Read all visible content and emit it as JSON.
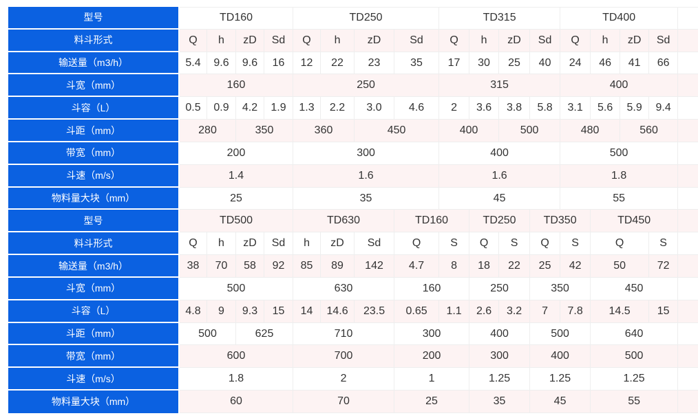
{
  "table": {
    "name": "td-series-spec-table",
    "colors": {
      "header_bg": "#0b61e1",
      "header_text": "#ffffff",
      "cell_text": "#333333",
      "cell_border": "#eeeeee",
      "header_border": "#ffffff",
      "row_bg": "#ffffff",
      "row_alt_bg": "#fdf3f3"
    },
    "rows": [
      {
        "label": "型号",
        "cells": [
          {
            "t": "TD160",
            "s": 4
          },
          {
            "t": "TD250",
            "s": 4
          },
          {
            "t": "TD315",
            "s": 4
          },
          {
            "t": "TD400",
            "s": 4
          }
        ]
      },
      {
        "label": "料斗形式",
        "cells": [
          {
            "t": "Q"
          },
          {
            "t": "h"
          },
          {
            "t": "zD"
          },
          {
            "t": "Sd"
          },
          {
            "t": "Q"
          },
          {
            "t": "h"
          },
          {
            "t": "zD"
          },
          {
            "t": "Sd"
          },
          {
            "t": "Q"
          },
          {
            "t": "h"
          },
          {
            "t": "zD"
          },
          {
            "t": "Sd"
          },
          {
            "t": "Q"
          },
          {
            "t": "h"
          },
          {
            "t": "zD"
          },
          {
            "t": "Sd"
          }
        ]
      },
      {
        "label": "输送量（m3/h）",
        "cells": [
          {
            "t": "5.4"
          },
          {
            "t": "9.6"
          },
          {
            "t": "9.6"
          },
          {
            "t": "16"
          },
          {
            "t": "12"
          },
          {
            "t": "22"
          },
          {
            "t": "23"
          },
          {
            "t": "35"
          },
          {
            "t": "17"
          },
          {
            "t": "30"
          },
          {
            "t": "25"
          },
          {
            "t": "40"
          },
          {
            "t": "24"
          },
          {
            "t": "46"
          },
          {
            "t": "41"
          },
          {
            "t": "66"
          }
        ]
      },
      {
        "label": "斗宽（mm）",
        "cells": [
          {
            "t": "160",
            "s": 4
          },
          {
            "t": "250",
            "s": 4
          },
          {
            "t": "315",
            "s": 4
          },
          {
            "t": "400",
            "s": 4
          }
        ]
      },
      {
        "label": "斗容（L）",
        "cells": [
          {
            "t": "0.5"
          },
          {
            "t": "0.9"
          },
          {
            "t": "4.2"
          },
          {
            "t": "1.9"
          },
          {
            "t": "1.3"
          },
          {
            "t": "2.2"
          },
          {
            "t": "3.0"
          },
          {
            "t": "4.6"
          },
          {
            "t": "2"
          },
          {
            "t": "3.6"
          },
          {
            "t": "3.8"
          },
          {
            "t": "5.8"
          },
          {
            "t": "3.1"
          },
          {
            "t": "5.6"
          },
          {
            "t": "5.9"
          },
          {
            "t": "9.4"
          }
        ]
      },
      {
        "label": "斗距（mm）",
        "cells": [
          {
            "t": "280",
            "s": 2
          },
          {
            "t": "350",
            "s": 2
          },
          {
            "t": "360",
            "s": 2
          },
          {
            "t": "450",
            "s": 2
          },
          {
            "t": "400",
            "s": 2
          },
          {
            "t": "500",
            "s": 2
          },
          {
            "t": "480",
            "s": 2
          },
          {
            "t": "560",
            "s": 2
          }
        ]
      },
      {
        "label": "带宽（mm）",
        "cells": [
          {
            "t": "200",
            "s": 4
          },
          {
            "t": "300",
            "s": 4
          },
          {
            "t": "400",
            "s": 4
          },
          {
            "t": "500",
            "s": 4
          }
        ]
      },
      {
        "label": "斗速（m/s）",
        "cells": [
          {
            "t": "1.4",
            "s": 4
          },
          {
            "t": "1.6",
            "s": 4
          },
          {
            "t": "1.6",
            "s": 4
          },
          {
            "t": "1.8",
            "s": 4
          }
        ]
      },
      {
        "label": "物料量大块（mm）",
        "cells": [
          {
            "t": "25",
            "s": 4
          },
          {
            "t": "35",
            "s": 4
          },
          {
            "t": "45",
            "s": 4
          },
          {
            "t": "55",
            "s": 4
          }
        ]
      },
      {
        "label": "型号",
        "cells": [
          {
            "t": "TD500",
            "s": 4
          },
          {
            "t": "TD630",
            "s": 3
          },
          {
            "t": "TD160",
            "s": 2
          },
          {
            "t": "TD250",
            "s": 2
          },
          {
            "t": "TD350",
            "s": 2
          },
          {
            "t": "TD450",
            "s": 3
          }
        ]
      },
      {
        "label": "料斗形式",
        "cells": [
          {
            "t": "Q"
          },
          {
            "t": "h"
          },
          {
            "t": "zD"
          },
          {
            "t": "Sd"
          },
          {
            "t": "h"
          },
          {
            "t": "zD"
          },
          {
            "t": "Sd"
          },
          {
            "t": "Q"
          },
          {
            "t": "S"
          },
          {
            "t": "Q"
          },
          {
            "t": "S"
          },
          {
            "t": "Q"
          },
          {
            "t": "S"
          },
          {
            "t": "Q",
            "s": 2
          },
          {
            "t": "S"
          }
        ]
      },
      {
        "label": "输送量（m3/h）",
        "cells": [
          {
            "t": "38"
          },
          {
            "t": "70"
          },
          {
            "t": "58"
          },
          {
            "t": "92"
          },
          {
            "t": "85"
          },
          {
            "t": "89"
          },
          {
            "t": "142"
          },
          {
            "t": "4.7"
          },
          {
            "t": "8"
          },
          {
            "t": "18"
          },
          {
            "t": "22"
          },
          {
            "t": "25"
          },
          {
            "t": "42"
          },
          {
            "t": "50",
            "s": 2
          },
          {
            "t": "72"
          }
        ]
      },
      {
        "label": "斗宽（mm）",
        "cells": [
          {
            "t": "500",
            "s": 4
          },
          {
            "t": "630",
            "s": 3
          },
          {
            "t": "160",
            "s": 2
          },
          {
            "t": "250",
            "s": 2
          },
          {
            "t": "350",
            "s": 2
          },
          {
            "t": "450",
            "s": 3
          }
        ]
      },
      {
        "label": "斗容（L）",
        "cells": [
          {
            "t": "4.8"
          },
          {
            "t": "9"
          },
          {
            "t": "9.3"
          },
          {
            "t": "15"
          },
          {
            "t": "14"
          },
          {
            "t": "14.6"
          },
          {
            "t": "23.5"
          },
          {
            "t": "0.65"
          },
          {
            "t": "1.1"
          },
          {
            "t": "2.6"
          },
          {
            "t": "3.2"
          },
          {
            "t": "7"
          },
          {
            "t": "7.8"
          },
          {
            "t": "14.5",
            "s": 2
          },
          {
            "t": "15"
          }
        ]
      },
      {
        "label": "斗距（mm）",
        "cells": [
          {
            "t": "500",
            "s": 2
          },
          {
            "t": "625",
            "s": 2
          },
          {
            "t": "710",
            "s": 3
          },
          {
            "t": "300",
            "s": 2
          },
          {
            "t": "400",
            "s": 2
          },
          {
            "t": "500",
            "s": 2
          },
          {
            "t": "640",
            "s": 3
          }
        ]
      },
      {
        "label": "带宽（mm）",
        "cells": [
          {
            "t": "600",
            "s": 4
          },
          {
            "t": "700",
            "s": 3
          },
          {
            "t": "200",
            "s": 2
          },
          {
            "t": "300",
            "s": 2
          },
          {
            "t": "400",
            "s": 2
          },
          {
            "t": "500",
            "s": 3
          }
        ]
      },
      {
        "label": "斗速（m/s）",
        "cells": [
          {
            "t": "1.8",
            "s": 4
          },
          {
            "t": "2",
            "s": 3
          },
          {
            "t": "1",
            "s": 2
          },
          {
            "t": "1.25",
            "s": 2
          },
          {
            "t": "1.25",
            "s": 2
          },
          {
            "t": "1.25",
            "s": 3
          }
        ]
      },
      {
        "label": "物料量大块（mm）",
        "cells": [
          {
            "t": "60",
            "s": 4
          },
          {
            "t": "70",
            "s": 3
          },
          {
            "t": "25",
            "s": 2
          },
          {
            "t": "35",
            "s": 2
          },
          {
            "t": "45",
            "s": 2
          },
          {
            "t": "55",
            "s": 3
          }
        ]
      }
    ]
  }
}
